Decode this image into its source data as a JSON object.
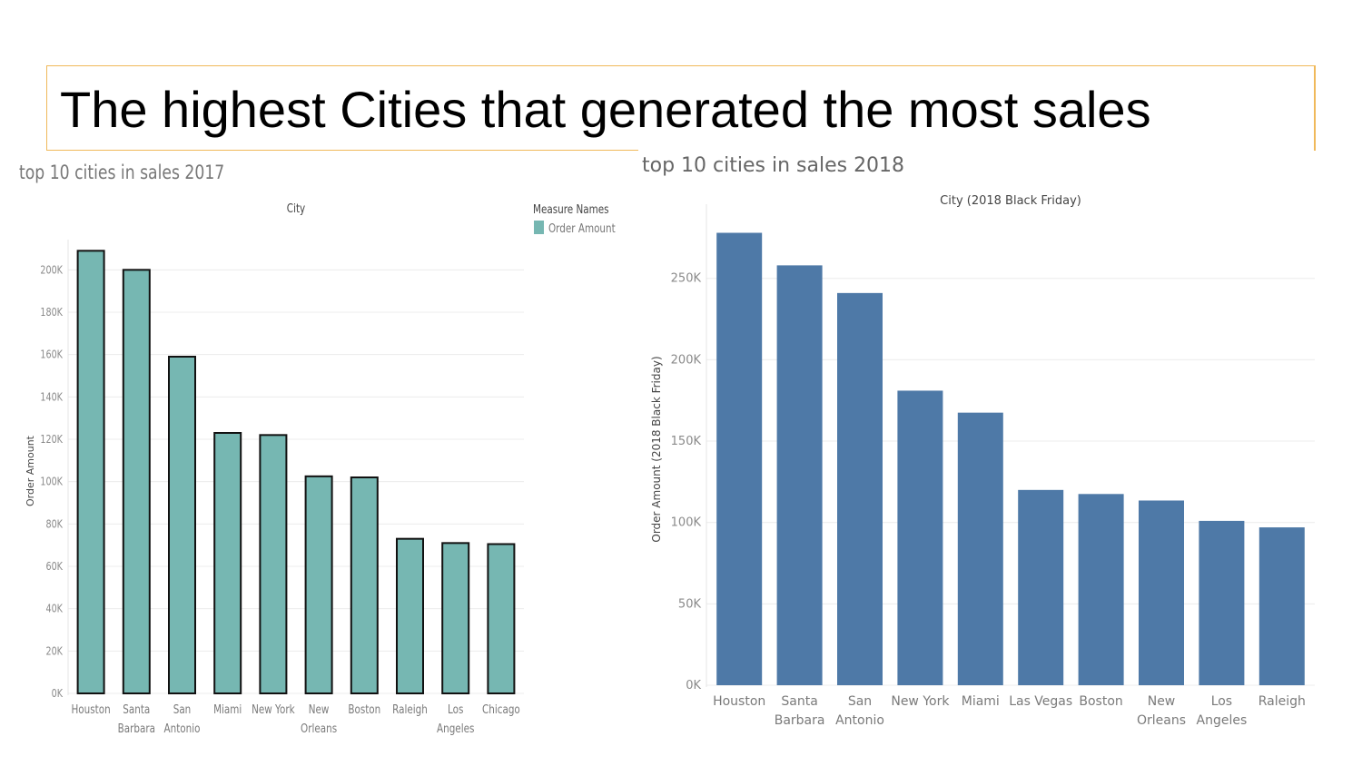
{
  "slide": {
    "title": "The highest Cities that generated the most sales"
  },
  "chart_data": [
    {
      "type": "bar",
      "title": "top 10 cities in sales 2017",
      "top_header": "City",
      "ylabel": "Order Amount",
      "legend": {
        "title": "Measure Names",
        "entries": [
          "Order Amount"
        ],
        "placement": "top-right"
      },
      "categories": [
        [
          "Houston"
        ],
        [
          "Santa",
          "Barbara"
        ],
        [
          "San",
          "Antonio"
        ],
        [
          "Miami"
        ],
        [
          "New York"
        ],
        [
          "New",
          "Orleans"
        ],
        [
          "Boston"
        ],
        [
          "Raleigh"
        ],
        [
          "Los",
          "Angeles"
        ],
        [
          "Chicago"
        ]
      ],
      "values": [
        209000,
        200000,
        159000,
        123000,
        122000,
        102500,
        102000,
        73000,
        71000,
        70500
      ],
      "ylim": [
        0,
        210000
      ],
      "yticks": [
        0,
        20000,
        40000,
        60000,
        80000,
        100000,
        120000,
        140000,
        160000,
        180000,
        200000
      ],
      "ytick_labels": [
        "0K",
        "20K",
        "40K",
        "60K",
        "80K",
        "100K",
        "120K",
        "140K",
        "160K",
        "180K",
        "200K"
      ],
      "grid": true,
      "color": "#76b7b2",
      "edge_color": "#111111"
    },
    {
      "type": "bar",
      "title": "top 10 cities in sales 2018",
      "top_header": "City (2018 Black Friday)",
      "ylabel": "Order Amount (2018 Black Friday)",
      "categories": [
        [
          "Houston"
        ],
        [
          "Santa",
          "Barbara"
        ],
        [
          "San",
          "Antonio"
        ],
        [
          "New York"
        ],
        [
          "Miami"
        ],
        [
          "Las Vegas"
        ],
        [
          "Boston"
        ],
        [
          "New",
          "Orleans"
        ],
        [
          "Los",
          "Angeles"
        ],
        [
          "Raleigh"
        ]
      ],
      "values": [
        278000,
        258000,
        241000,
        181000,
        167500,
        120000,
        117500,
        113500,
        101000,
        97000
      ],
      "ylim": [
        0,
        290000
      ],
      "yticks": [
        0,
        50000,
        100000,
        150000,
        200000,
        250000
      ],
      "ytick_labels": [
        "0K",
        "50K",
        "100K",
        "150K",
        "200K",
        "250K"
      ],
      "grid": true,
      "color": "#4e79a7"
    }
  ]
}
